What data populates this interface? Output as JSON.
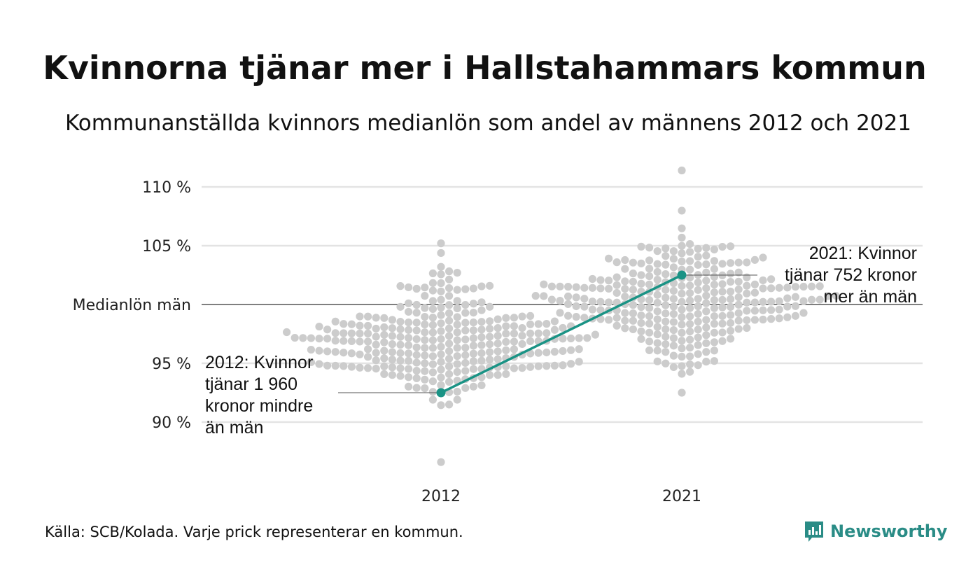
{
  "title": "Kvinnorna tjänar mer i Hallstahammars kommun",
  "subtitle": "Kommunanställda kvinnors medianlön som andel av männens 2012 och 2021",
  "source": "Källa: SCB/Kolada. Varje prick representerar en kommun.",
  "brand": {
    "name": "Newsworthy",
    "color": "#2a8c86"
  },
  "colors": {
    "dots": "#cccccc",
    "highlight": "#1a9385",
    "grid": "#e3e3e3",
    "reference": "#333333"
  },
  "chart_data": {
    "type": "scatter",
    "categories": [
      "2012",
      "2021"
    ],
    "y_ticks": [
      {
        "value": 110,
        "label": "110 %"
      },
      {
        "value": 105,
        "label": "105 %"
      },
      {
        "value": 100,
        "label": "Medianlön män"
      },
      {
        "value": 95,
        "label": "95 %"
      },
      {
        "value": 90,
        "label": "90 %"
      }
    ],
    "ylim": [
      86.5,
      111.5
    ],
    "grid": true,
    "reference_line": 100,
    "distributions": [
      {
        "category": "2012",
        "min": 86.6,
        "max": 105.2,
        "center": 96.8,
        "spread": 2.6,
        "count": 290
      },
      {
        "category": "2021",
        "min": 92.5,
        "max": 111.4,
        "center": 100.6,
        "spread": 2.4,
        "count": 290
      }
    ],
    "highlight": {
      "values": [
        92.5,
        102.5
      ],
      "annotations": [
        "2012: Kvinnor tjänar 1 960 kronor mindre än män",
        "2021: Kvinnor tjänar 752 kronor mer än män"
      ]
    }
  }
}
